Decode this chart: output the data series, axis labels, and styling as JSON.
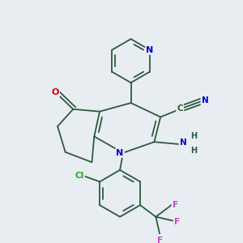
{
  "background_color": "#e8edf2",
  "bond_color": "#2d5a3d",
  "atom_colors": {
    "N": "#0000cc",
    "O": "#cc0000",
    "Cl": "#22aa22",
    "F": "#cc44cc",
    "C": "#2d5a3d",
    "default": "#2d5a3d"
  },
  "figsize": [
    3.0,
    3.0
  ],
  "dpi": 100
}
